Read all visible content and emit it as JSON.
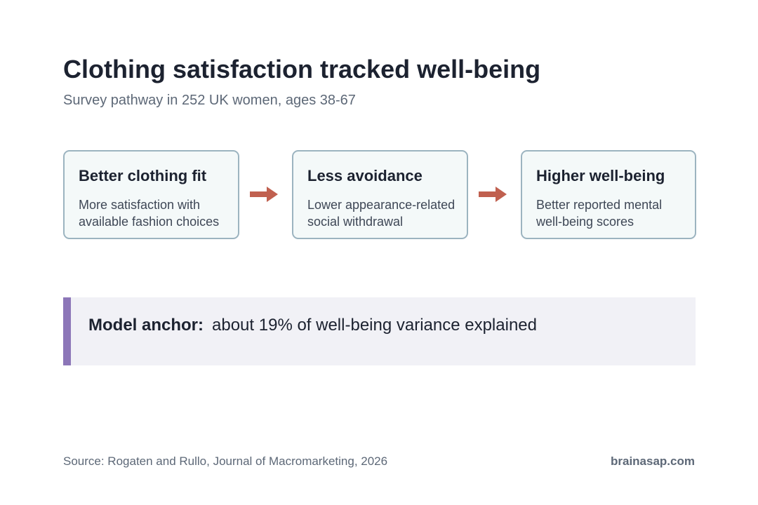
{
  "header": {
    "title": "Clothing satisfaction tracked well-being",
    "subtitle": "Survey pathway in 252 UK women, ages 38-67"
  },
  "nodes": [
    {
      "label": "Better clothing fit",
      "lines": [
        "More satisfaction with",
        "available fashion choices"
      ]
    },
    {
      "label": "Less avoidance",
      "lines": [
        "Lower appearance-related",
        "social withdrawal"
      ]
    },
    {
      "label": "Higher well-being",
      "lines": [
        "Better reported mental",
        "well-being scores"
      ]
    }
  ],
  "callout": {
    "label": "Model anchor:",
    "text": "about 19% of well-being variance explained"
  },
  "footer": {
    "source": "Source: Rogaten and Rullo, Journal of Macromarketing, 2026",
    "brand": "brainasap.com"
  }
}
